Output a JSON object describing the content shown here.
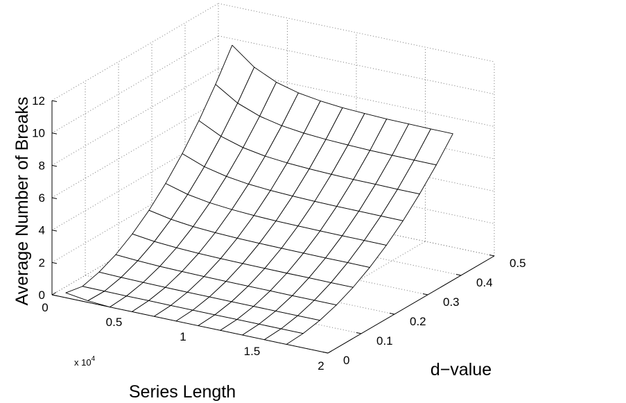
{
  "chart_data": {
    "type": "surface",
    "x_label": "Series Length",
    "y_label": "d−value",
    "z_label": "Average Number of Breaks",
    "x_multiplier": {
      "base": "x 10",
      "exponent": "4"
    },
    "x": [
      1000,
      2600,
      4200,
      5800,
      7400,
      9000,
      10600,
      12200,
      13800,
      15400,
      17000
    ],
    "y": [
      0,
      0.05,
      0.1,
      0.15,
      0.2,
      0.25,
      0.3,
      0.35,
      0.4,
      0.45,
      0.5
    ],
    "z": [
      [
        0.3,
        0.1,
        0.38,
        0.86,
        1.54,
        2.4,
        3.46,
        4.7,
        6.14,
        7.78,
        9.6
      ],
      [
        0.1,
        0.09,
        0.34,
        0.77,
        1.36,
        2.13,
        3.07,
        4.18,
        5.46,
        6.91,
        8.53
      ],
      [
        0,
        0.08,
        0.32,
        0.71,
        1.26,
        1.97,
        2.84,
        3.87,
        5.05,
        6.39,
        7.89
      ],
      [
        0,
        0.08,
        0.3,
        0.68,
        1.2,
        1.88,
        2.71,
        3.68,
        4.81,
        6.09,
        7.52
      ],
      [
        0,
        0.07,
        0.29,
        0.66,
        1.17,
        1.83,
        2.63,
        3.58,
        4.68,
        5.92,
        7.31
      ],
      [
        0,
        0.07,
        0.29,
        0.65,
        1.15,
        1.8,
        2.58,
        3.52,
        4.6,
        5.82,
        7.18
      ],
      [
        0,
        0.07,
        0.28,
        0.64,
        1.14,
        1.78,
        2.56,
        3.48,
        4.55,
        5.76,
        7.11
      ],
      [
        0,
        0.07,
        0.28,
        0.64,
        1.13,
        1.77,
        2.54,
        3.46,
        4.52,
        5.72,
        7.06
      ],
      [
        0,
        0.07,
        0.28,
        0.63,
        1.13,
        1.76,
        2.53,
        3.45,
        4.51,
        5.7,
        7.04
      ],
      [
        0,
        0.07,
        0.28,
        0.63,
        1.12,
        1.76,
        2.53,
        3.44,
        4.49,
        5.69,
        7.02
      ],
      [
        0,
        0.07,
        0.28,
        0.63,
        1.12,
        1.75,
        2.52,
        3.43,
        4.49,
        5.68,
        7.01
      ]
    ],
    "xlim": [
      0,
      20000
    ],
    "ylim": [
      0,
      0.5
    ],
    "zlim": [
      0,
      12
    ],
    "xticks": [
      0,
      {
        "value": 5000,
        "label": "0.5"
      },
      {
        "value": 10000,
        "label": "1"
      },
      {
        "value": 15000,
        "label": "1.5"
      },
      {
        "value": 20000,
        "label": "2"
      }
    ],
    "yticks": [
      0,
      0.1,
      0.2,
      0.3,
      0.4,
      0.5
    ],
    "zticks": [
      0,
      2,
      4,
      6,
      8,
      10,
      12
    ],
    "grid": true,
    "face_color": "#ffffff",
    "edge_color": "#000000"
  }
}
